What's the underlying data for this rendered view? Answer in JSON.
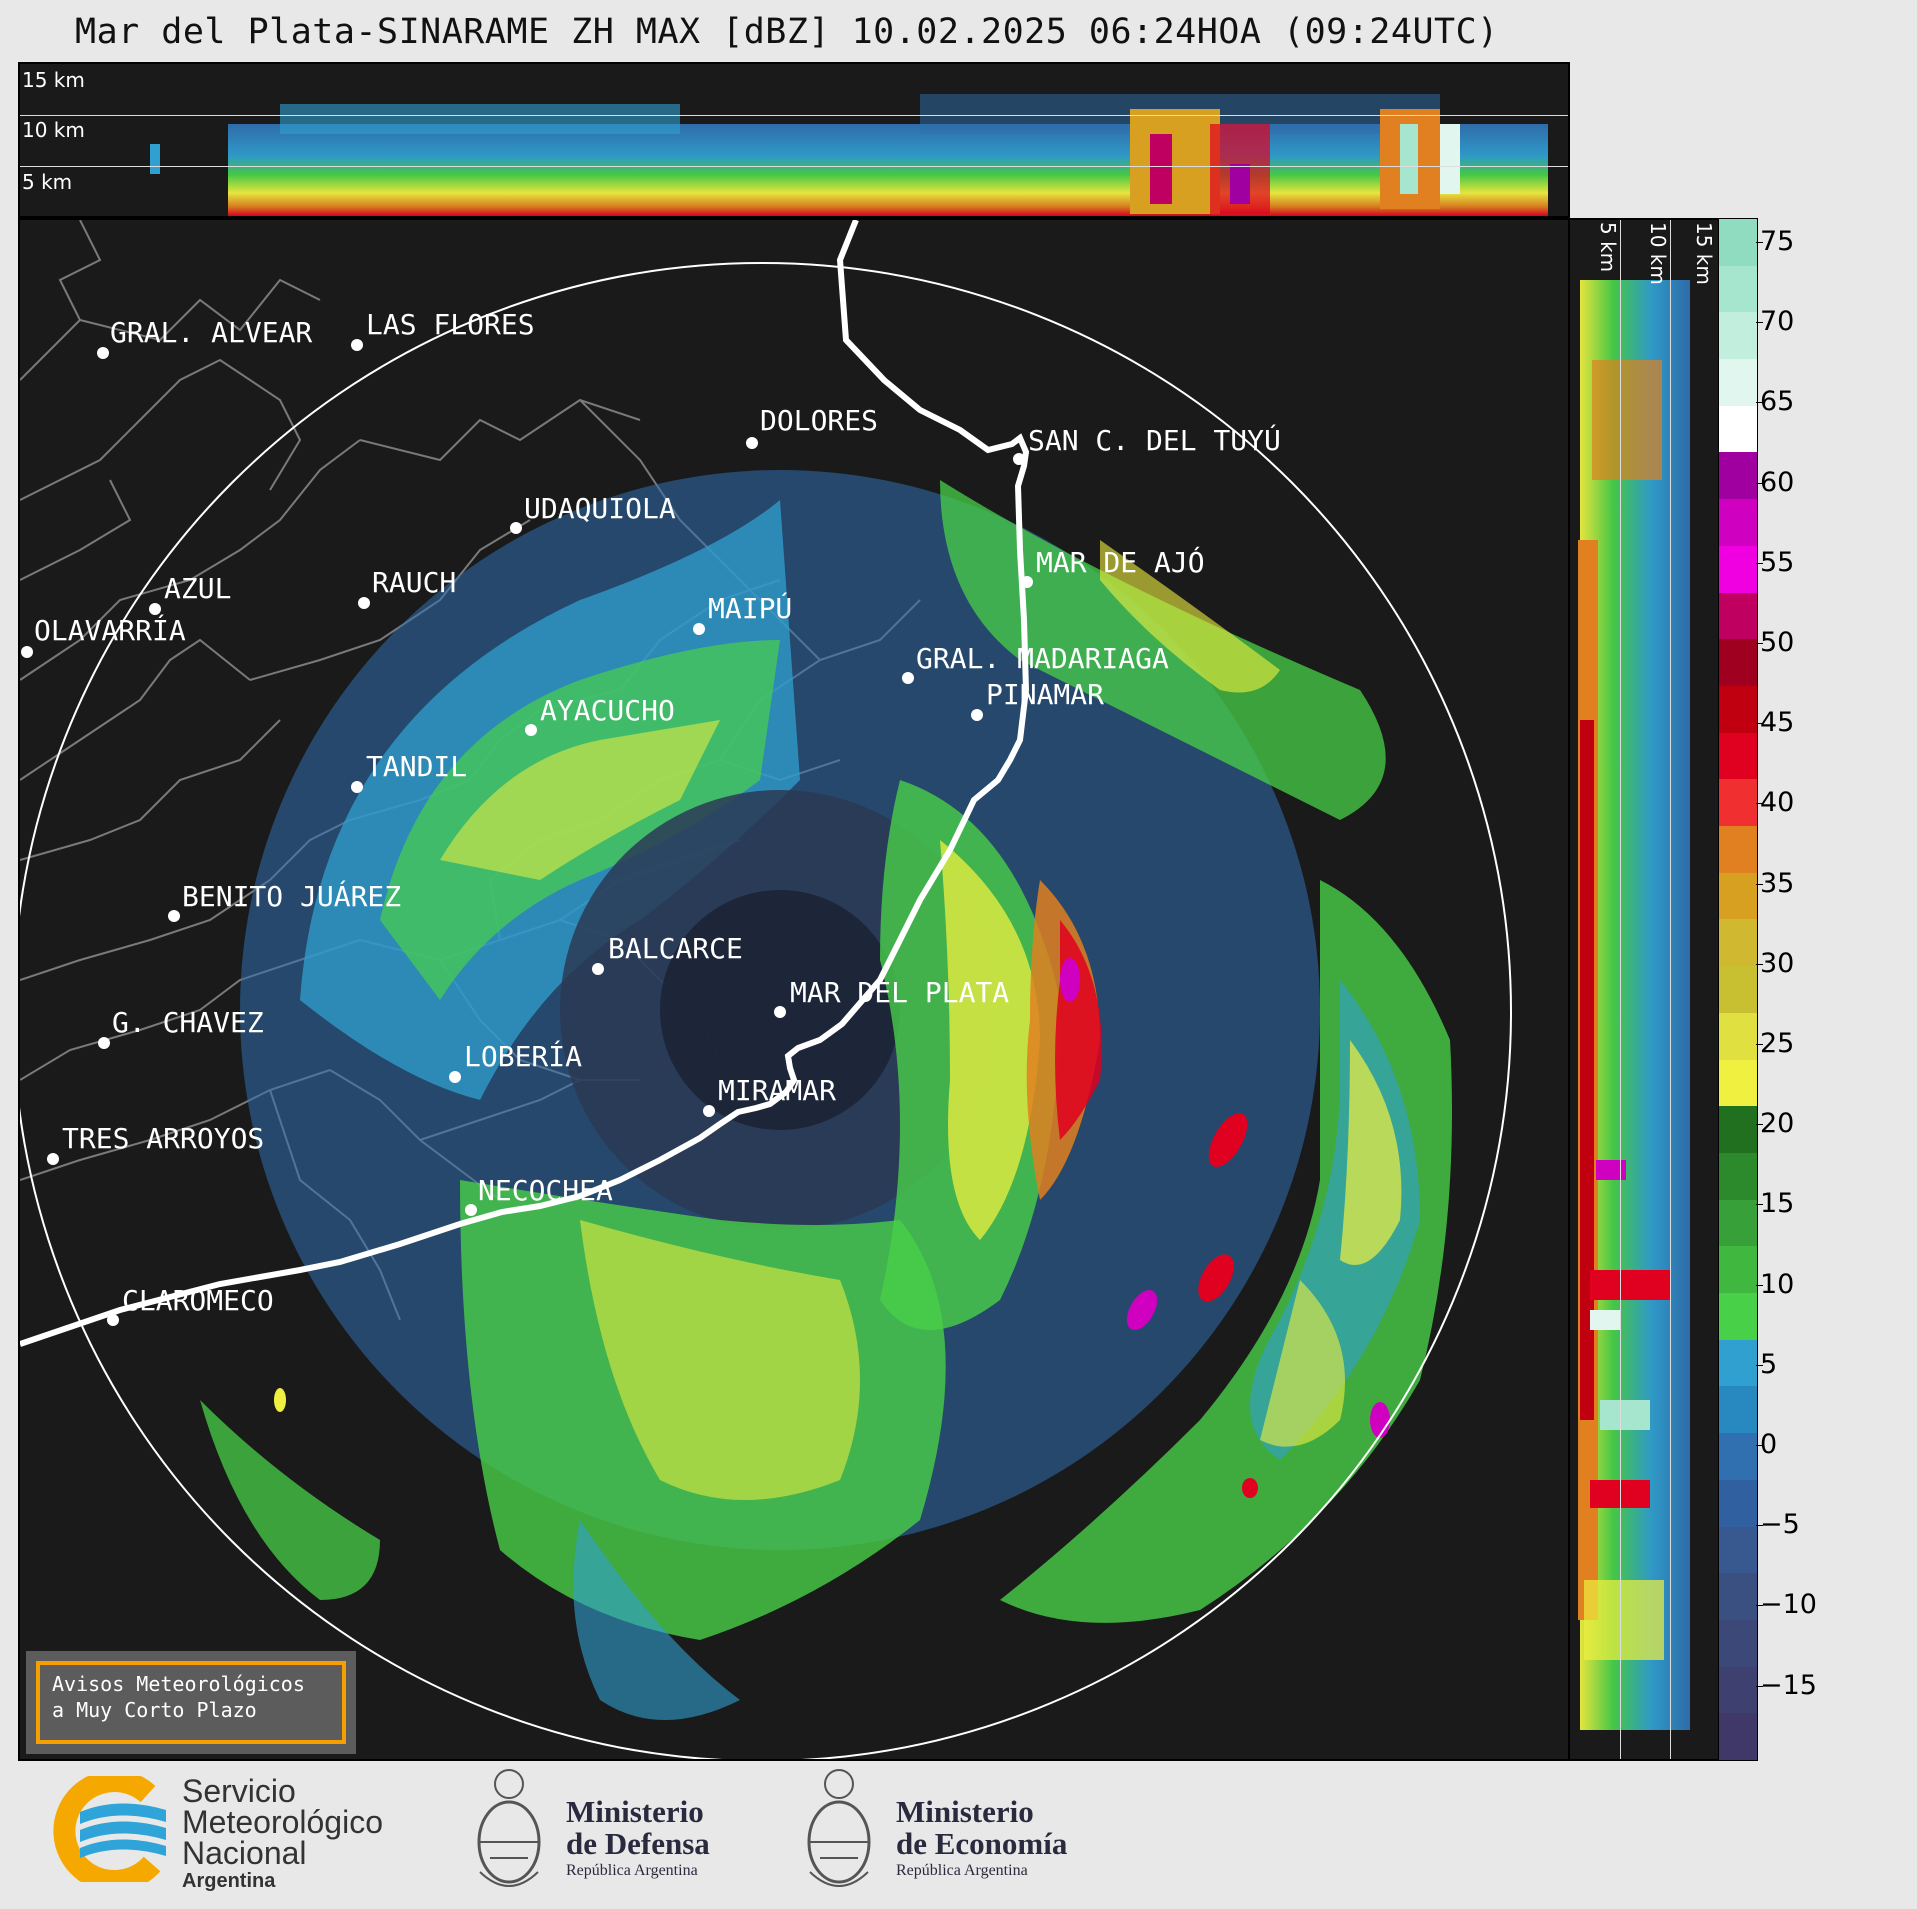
{
  "title": "Mar del Plata-SINARAME ZH MAX [dBZ] 10.02.2025 06:24HOA (09:24UTC)",
  "top_panel": {
    "height_labels": [
      "15 km",
      "10 km",
      "5 km"
    ]
  },
  "side_panel": {
    "height_labels": [
      "5 km",
      "10 km",
      "15 km"
    ]
  },
  "colorbar": {
    "ticks": [
      "75",
      "70",
      "65",
      "60",
      "55",
      "50",
      "45",
      "40",
      "35",
      "30",
      "25",
      "20",
      "15",
      "10",
      "5",
      "0",
      "−5",
      "−10",
      "−15"
    ],
    "colors": [
      "#8fdcc0",
      "#a6e6cf",
      "#c2eedd",
      "#e0f6ee",
      "#ffffff",
      "#a000a0",
      "#d000c0",
      "#f000e0",
      "#c00060",
      "#a00020",
      "#c00010",
      "#e00020",
      "#f03030",
      "#e08020",
      "#d8a020",
      "#d0b830",
      "#c8c030",
      "#e0e040",
      "#f0f040",
      "#207020",
      "#2c8a2c",
      "#38a038",
      "#40b840",
      "#48d048",
      "#30a0d0",
      "#2888c0",
      "#3070b0",
      "#3060a0",
      "#385890",
      "#3a5080",
      "#3c4878",
      "#3e4070",
      "#403868"
    ]
  },
  "cities": [
    {
      "name": "GRAL. ALVEAR"
    },
    {
      "name": "LAS FLORES"
    },
    {
      "name": "DOLORES"
    },
    {
      "name": "SAN C. DEL TUYÚ"
    },
    {
      "name": "UDAQUIOLA"
    },
    {
      "name": "MAR DE AJÓ"
    },
    {
      "name": "AZUL"
    },
    {
      "name": "RAUCH"
    },
    {
      "name": "OLAVARRÍA"
    },
    {
      "name": "MAIPÚ"
    },
    {
      "name": "GRAL. MADARIAGA"
    },
    {
      "name": "PINAMAR"
    },
    {
      "name": "AYACUCHO"
    },
    {
      "name": "TANDIL"
    },
    {
      "name": "BENITO JUÁREZ"
    },
    {
      "name": "BALCARCE"
    },
    {
      "name": "MAR DEL PLATA"
    },
    {
      "name": "G. CHAVEZ"
    },
    {
      "name": "LOBERÍA"
    },
    {
      "name": "MIRAMAR"
    },
    {
      "name": "TRES ARROYOS"
    },
    {
      "name": "NECOCHEA"
    },
    {
      "name": "CLAROMECO"
    }
  ],
  "avisos": {
    "line1": "Avisos Meteorológicos",
    "line2": "a Muy Corto Plazo"
  },
  "logos": {
    "smn": {
      "line1": "Servicio",
      "line2": "Meteorológico",
      "line3": "Nacional",
      "line4": "Argentina"
    },
    "defensa": {
      "line1": "Ministerio",
      "line2": "de Defensa",
      "line3": "República Argentina"
    },
    "economia": {
      "line1": "Ministerio",
      "line2": "de Economía",
      "line3": "República Argentina"
    }
  }
}
